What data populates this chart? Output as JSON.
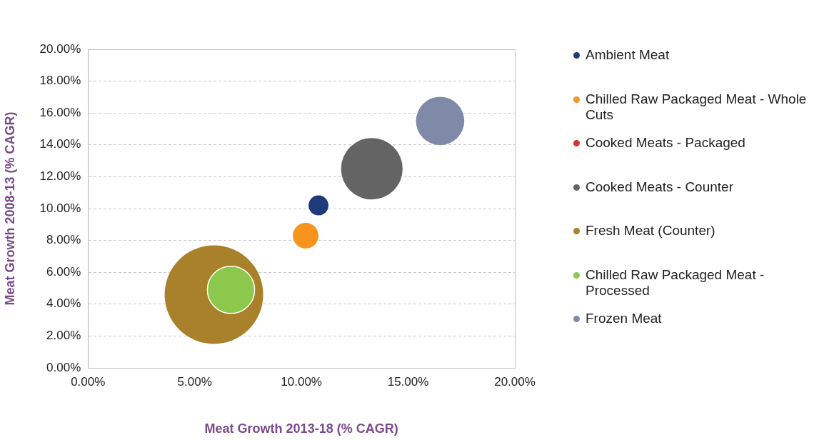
{
  "chart_data": {
    "type": "bubble",
    "xlabel": "Meat Growth 2013-18 (% CAGR)",
    "ylabel": "Meat Growth 2008-13 (% CAGR)",
    "series": [
      {
        "name": "Ambient Meat",
        "color": "#1f3a7a",
        "x": [
          10.8
        ],
        "values": [
          10.2
        ],
        "sizes": [
          0.041
        ]
      },
      {
        "name": "Chilled Raw Packaged Meat - Whole Cuts",
        "color": "#f7931e",
        "x": [
          10.2
        ],
        "values": [
          8.3
        ],
        "sizes": [
          0.068
        ]
      },
      {
        "name": "Cooked Meats - Packaged",
        "color": "#d93030",
        "x": [
          null
        ],
        "values": [
          null
        ],
        "sizes": [
          null
        ]
      },
      {
        "name": "Cooked Meats - Counter",
        "color": "#646464",
        "x": [
          13.3
        ],
        "values": [
          12.5
        ],
        "sizes": [
          0.39
        ]
      },
      {
        "name": "Fresh Meat (Counter)",
        "color": "#a8812a",
        "x": [
          5.9
        ],
        "values": [
          4.6
        ],
        "sizes": [
          1
        ]
      },
      {
        "name": "Chilled Raw Packaged Meat - Processed",
        "color": "#8cc84b",
        "x": [
          6.7
        ],
        "values": [
          4.9
        ],
        "sizes": [
          0.23
        ]
      },
      {
        "name": "Frozen Meat",
        "color": "#7f8aa8",
        "x": [
          16.5
        ],
        "values": [
          15.5
        ],
        "sizes": [
          0.24
        ]
      }
    ],
    "xlim": [
      0,
      20
    ],
    "xticks": [
      {
        "value": 0,
        "label": "0.00%"
      },
      {
        "value": 5,
        "label": "5.00%"
      },
      {
        "value": 10,
        "label": "10.00%"
      },
      {
        "value": 15,
        "label": "15.00%"
      },
      {
        "value": 20,
        "label": "20.00%"
      }
    ],
    "ylim": [
      0,
      20
    ],
    "yticks": [
      {
        "value": 0,
        "label": "0.00%"
      },
      {
        "value": 2,
        "label": "2.00%"
      },
      {
        "value": 4,
        "label": "4.00%"
      },
      {
        "value": 6,
        "label": "6.00%"
      },
      {
        "value": 8,
        "label": "8.00%"
      },
      {
        "value": 10,
        "label": "10.00%"
      },
      {
        "value": 12,
        "label": "12.00%"
      },
      {
        "value": 14,
        "label": "14.00%"
      },
      {
        "value": 16,
        "label": "16.00%"
      },
      {
        "value": 18,
        "label": "18.00%"
      },
      {
        "value": 20,
        "label": "20.00%"
      }
    ],
    "grid": "y",
    "legend": "right"
  }
}
